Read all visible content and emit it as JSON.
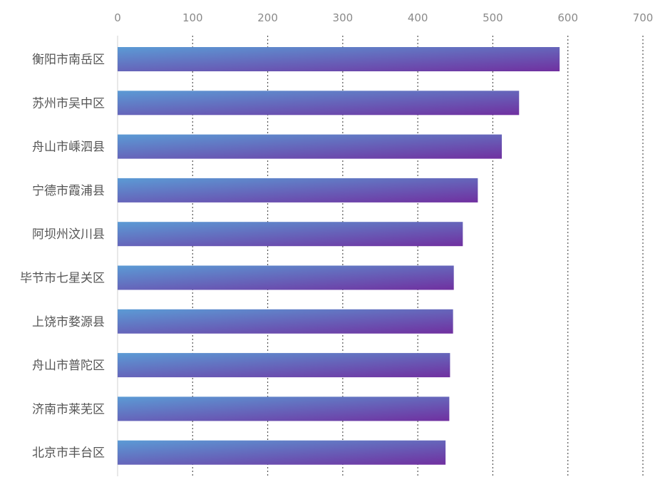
{
  "chart_data": {
    "type": "bar",
    "orientation": "horizontal",
    "categories": [
      "衡阳市南岳区",
      "苏州市吴中区",
      "舟山市嵊泗县",
      "宁德市霞浦县",
      "阿坝州汶川县",
      "毕节市七星关区",
      "上饶市婺源县",
      "舟山市普陀区",
      "济南市莱芜区",
      "北京市丰台区"
    ],
    "values": [
      589,
      535,
      512,
      480,
      460,
      448,
      447,
      443,
      442,
      437
    ],
    "xlim": [
      0,
      700
    ],
    "xticks": [
      0,
      100,
      200,
      300,
      400,
      500,
      600,
      700
    ],
    "x_axis_position": "top",
    "grid": "vertical dotted",
    "legend": "none",
    "title": "",
    "xlabel": "",
    "ylabel": ""
  },
  "colors": {
    "bar_gradient_start": "#5b9bd5",
    "bar_gradient_end": "#7030a0",
    "grid": "#555555",
    "axis": "#d0d0d0",
    "tick_text": "#8a8a8a",
    "category_text": "#555555"
  }
}
